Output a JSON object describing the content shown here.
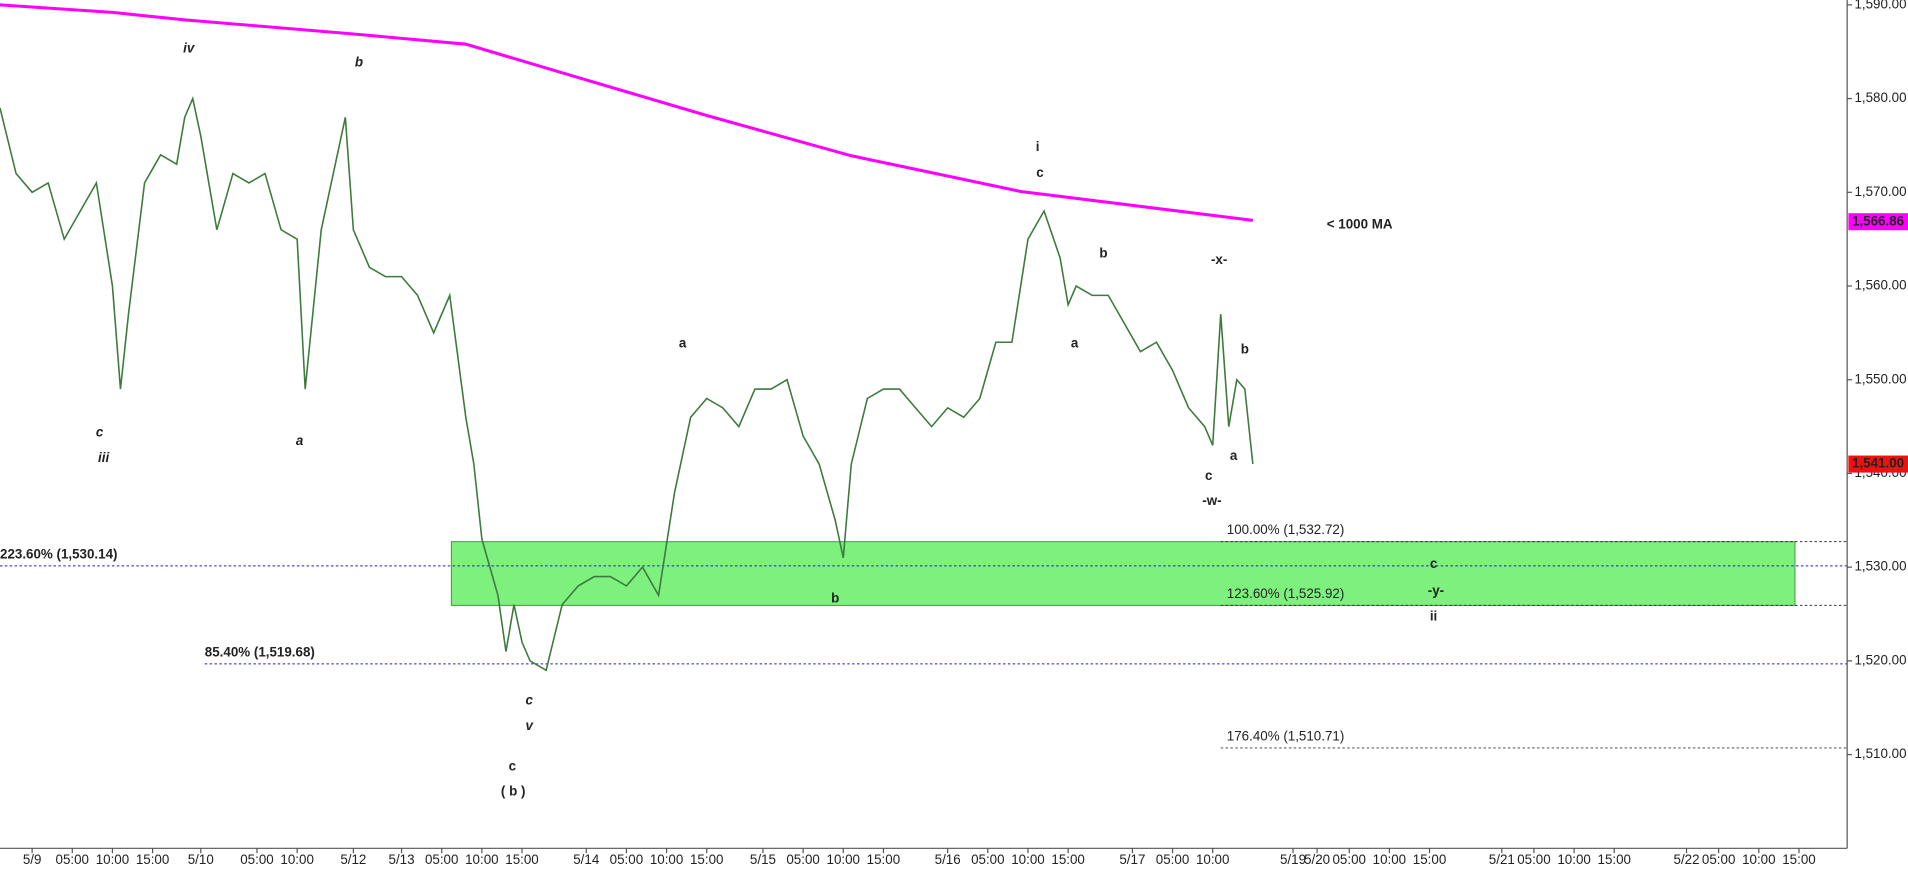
{
  "chart_data": {
    "type": "line",
    "xlim": [
      0,
      230
    ],
    "ylim": [
      1500,
      1590
    ],
    "xticks": [
      {
        "value": 4,
        "label": "5/9"
      },
      {
        "value": 9,
        "label": "05:00"
      },
      {
        "value": 14,
        "label": "10:00"
      },
      {
        "value": 19,
        "label": "15:00"
      },
      {
        "value": 25,
        "label": "5/10"
      },
      {
        "value": 32,
        "label": "05:00"
      },
      {
        "value": 37,
        "label": "10:00"
      },
      {
        "value": 44,
        "label": "5/12"
      },
      {
        "value": 50,
        "label": "5/13"
      },
      {
        "value": 55,
        "label": "05:00"
      },
      {
        "value": 60,
        "label": "10:00"
      },
      {
        "value": 65,
        "label": "15:00"
      },
      {
        "value": 73,
        "label": "5/14"
      },
      {
        "value": 78,
        "label": "05:00"
      },
      {
        "value": 83,
        "label": "10:00"
      },
      {
        "value": 88,
        "label": "15:00"
      },
      {
        "value": 95,
        "label": "5/15"
      },
      {
        "value": 100,
        "label": "05:00"
      },
      {
        "value": 105,
        "label": "10:00"
      },
      {
        "value": 110,
        "label": "15:00"
      },
      {
        "value": 118,
        "label": "5/16"
      },
      {
        "value": 123,
        "label": "05:00"
      },
      {
        "value": 128,
        "label": "10:00"
      },
      {
        "value": 133,
        "label": "15:00"
      },
      {
        "value": 141,
        "label": "5/17"
      },
      {
        "value": 146,
        "label": "05:00"
      },
      {
        "value": 151,
        "label": "10:00"
      },
      {
        "value": 161,
        "label": "5/19"
      },
      {
        "value": 164,
        "label": "5/20"
      },
      {
        "value": 168,
        "label": "05:00"
      },
      {
        "value": 173,
        "label": "10:00"
      },
      {
        "value": 178,
        "label": "15:00"
      },
      {
        "value": 187,
        "label": "5/21"
      },
      {
        "value": 191,
        "label": "05:00"
      },
      {
        "value": 196,
        "label": "10:00"
      },
      {
        "value": 201,
        "label": "15:00"
      },
      {
        "value": 210,
        "label": "5/22"
      },
      {
        "value": 214,
        "label": "05:00"
      },
      {
        "value": 219,
        "label": "10:00"
      },
      {
        "value": 224,
        "label": "15:00"
      }
    ],
    "yticks": [
      {
        "value": 1510,
        "label": "1,510.00"
      },
      {
        "value": 1520,
        "label": "1,520.00"
      },
      {
        "value": 1530,
        "label": "1,530.00"
      },
      {
        "value": 1540,
        "label": "1,540.00"
      },
      {
        "value": 1550,
        "label": "1,550.00"
      },
      {
        "value": 1560,
        "label": "1,560.00"
      },
      {
        "value": 1570,
        "label": "1,570.00"
      },
      {
        "value": 1580,
        "label": "1,580.00"
      },
      {
        "value": 1590,
        "label": "1,590.00"
      }
    ],
    "series": [
      {
        "color": "#3d7a3d",
        "x": [
          0,
          2,
          4,
          6,
          8,
          10,
          12,
          14,
          15,
          16,
          18,
          20,
          22,
          23,
          24,
          25,
          27,
          29,
          31,
          33,
          35,
          37,
          38,
          40,
          42,
          43,
          44,
          46,
          48,
          50,
          52,
          54,
          56,
          58,
          59,
          60,
          62,
          63,
          64,
          65,
          66,
          68,
          70,
          72,
          74,
          76,
          78,
          80,
          82,
          84,
          86,
          88,
          90,
          92,
          94,
          96,
          98,
          100,
          102,
          104,
          105,
          106,
          108,
          110,
          112,
          114,
          116,
          118,
          120,
          122,
          124,
          126,
          128,
          130,
          132,
          133,
          134,
          136,
          138,
          140,
          142,
          144,
          146,
          148,
          150,
          151,
          152,
          153,
          154,
          155,
          156
        ],
        "values": [
          1579,
          1572,
          1570,
          1571,
          1565,
          1568,
          1571,
          1560,
          1549,
          1557,
          1571,
          1574,
          1573,
          1578,
          1580,
          1576,
          1566,
          1572,
          1571,
          1572,
          1566,
          1565,
          1549,
          1566,
          1574,
          1578,
          1566,
          1562,
          1561,
          1561,
          1559,
          1555,
          1559,
          1546,
          1541,
          1533,
          1527,
          1521,
          1526,
          1522,
          1520,
          1519,
          1526,
          1528,
          1529,
          1529,
          1528,
          1530,
          1527,
          1538,
          1546,
          1548,
          1547,
          1545,
          1549,
          1549,
          1550,
          1544,
          1541,
          1535,
          1531,
          1541,
          1548,
          1549,
          1549,
          1547,
          1545,
          1547,
          1546,
          1548,
          1554,
          1554,
          1565,
          1568,
          1563,
          1558,
          1560,
          1559,
          1559,
          1556,
          1553,
          1554,
          1551,
          1547,
          1545,
          1543,
          1557,
          1545,
          1550,
          1549,
          1541
        ]
      },
      {
        "color": "#ff00ff",
        "x": [
          0,
          14,
          23,
          44,
          58,
          71,
          88,
          106,
          127,
          156
        ],
        "values": [
          1590,
          1589.2,
          1588.4,
          1586.9,
          1585.8,
          1582.5,
          1578.2,
          1573.9,
          1570.1,
          1567
        ]
      }
    ],
    "price_tags": [
      {
        "value": 1566.86,
        "label": "1,566.86",
        "color": "#ff00ff"
      },
      {
        "value": 1541,
        "label": "1,541.00",
        "color": "#ee1111"
      }
    ],
    "levels": [
      {
        "value": 1532.72,
        "label": "100.00% (1,532.72)",
        "x_start": 152,
        "color": "#333333"
      },
      {
        "value": 1525.92,
        "label": "123.60% (1,525.92)",
        "x_start": 152,
        "color": "#333333"
      },
      {
        "value": 1510.71,
        "label": "176.40% (1,510.71)",
        "x_start": 152,
        "color": "#333333"
      },
      {
        "value": 1530.14,
        "label": "223.60% (1,530.14)",
        "x_start": 0,
        "color": "#1a1acc"
      },
      {
        "value": 1519.68,
        "label": "85.40% (1,519.68)",
        "x_start": 25.5,
        "color": "#1a1acc"
      }
    ],
    "zone": {
      "x": [
        56.2,
        223.5
      ],
      "color": "#7ef07e"
    },
    "annotations": [
      {
        "text": "iv",
        "x": 23.5,
        "y": 1585.3,
        "color": "#111111",
        "italic": true
      },
      {
        "text": "b",
        "x": 44.7,
        "y": 1583.8,
        "color": "#111111",
        "italic": true
      },
      {
        "text": "c",
        "x": 12.4,
        "y": 1544.3,
        "color": "#111111",
        "italic": true
      },
      {
        "text": "iii",
        "x": 12.9,
        "y": 1541.6,
        "color": "#111111",
        "italic": true
      },
      {
        "text": "a",
        "x": 37.3,
        "y": 1543.4,
        "color": "#111111",
        "italic": true
      },
      {
        "text": "c",
        "x": 65.9,
        "y": 1515.7,
        "color": "#111111",
        "italic": true
      },
      {
        "text": "v",
        "x": 65.9,
        "y": 1513,
        "color": "#111111",
        "italic": true
      },
      {
        "text": "c",
        "x": 63.8,
        "y": 1508.7,
        "color": "#1a1acc",
        "italic": false
      },
      {
        "text": "( b )",
        "x": 63.9,
        "y": 1506,
        "color": "#1a1acc",
        "italic": false
      },
      {
        "text": "a",
        "x": 85,
        "y": 1553.8,
        "color": "#111111",
        "italic": false
      },
      {
        "text": "b",
        "x": 104,
        "y": 1526.6,
        "color": "#111111",
        "italic": false
      },
      {
        "text": "i",
        "x": 129.2,
        "y": 1574.8,
        "color": "#111111",
        "italic": false
      },
      {
        "text": "c",
        "x": 129.5,
        "y": 1572,
        "color": "#111111",
        "italic": false
      },
      {
        "text": "b",
        "x": 137.4,
        "y": 1563.4,
        "color": "#111111",
        "italic": false
      },
      {
        "text": "a",
        "x": 133.8,
        "y": 1553.8,
        "color": "#111111",
        "italic": false
      },
      {
        "text": "-x-",
        "x": 151.8,
        "y": 1562.7,
        "color": "#111111",
        "italic": false
      },
      {
        "text": "b",
        "x": 155,
        "y": 1553.2,
        "color": "#111111",
        "italic": false
      },
      {
        "text": "a",
        "x": 153.6,
        "y": 1541.8,
        "color": "#111111",
        "italic": false
      },
      {
        "text": "c",
        "x": 150.5,
        "y": 1539.7,
        "color": "#111111",
        "italic": false
      },
      {
        "text": "-w-",
        "x": 150.9,
        "y": 1537,
        "color": "#111111",
        "italic": false
      },
      {
        "text": "c",
        "x": 178.5,
        "y": 1530.3,
        "color": "#111111",
        "italic": false
      },
      {
        "text": "-y-",
        "x": 178.8,
        "y": 1527.4,
        "color": "#111111",
        "italic": false
      },
      {
        "text": "ii",
        "x": 178.5,
        "y": 1524.7,
        "color": "#111111",
        "italic": false
      },
      {
        "text": "< 1000 MA",
        "x": 165.2,
        "y": 1566.5,
        "color": "#ee22ee",
        "italic": false,
        "big": true
      }
    ]
  }
}
